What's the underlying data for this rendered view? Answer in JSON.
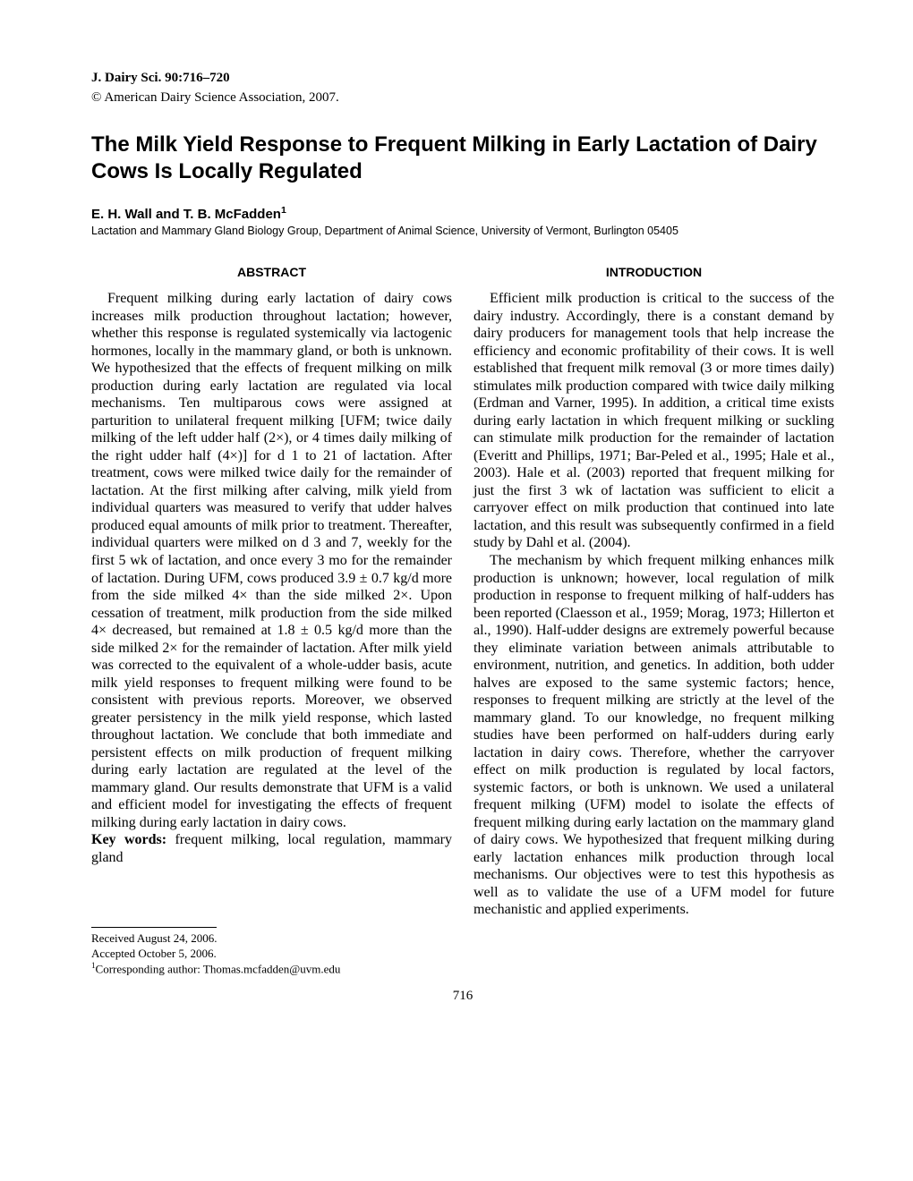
{
  "journal_ref": "J. Dairy Sci. 90:716–720",
  "copyright": "© American Dairy Science Association, 2007.",
  "title": "The Milk Yield Response to Frequent Milking in Early Lactation of Dairy Cows Is Locally Regulated",
  "authors": "E. H. Wall and T. B. McFadden",
  "author_sup": "1",
  "affiliation": "Lactation and Mammary Gland Biology Group, Department of Animal Science, University of Vermont, Burlington 05405",
  "abstract_heading": "ABSTRACT",
  "intro_heading": "INTRODUCTION",
  "abstract_text": "Frequent milking during early lactation of dairy cows increases milk production throughout lactation; however, whether this response is regulated systemically via lactogenic hormones, locally in the mammary gland, or both is unknown. We hypothesized that the effects of frequent milking on milk production during early lactation are regulated via local mechanisms. Ten multiparous cows were assigned at parturition to unilateral frequent milking [UFM; twice daily milking of the left udder half (2×), or 4 times daily milking of the right udder half (4×)] for d 1 to 21 of lactation. After treatment, cows were milked twice daily for the remainder of lactation. At the first milking after calving, milk yield from individual quarters was measured to verify that udder halves produced equal amounts of milk prior to treatment. Thereafter, individual quarters were milked on d 3 and 7, weekly for the first 5 wk of lactation, and once every 3 mo for the remainder of lactation. During UFM, cows produced 3.9 ± 0.7 kg/d more from the side milked 4× than the side milked 2×. Upon cessation of treatment, milk production from the side milked 4× decreased, but remained at 1.8 ± 0.5 kg/d more than the side milked 2× for the remainder of lactation. After milk yield was corrected to the equivalent of a whole-udder basis, acute milk yield responses to frequent milking were found to be consistent with previous reports. Moreover, we observed greater persistency in the milk yield response, which lasted throughout lactation. We conclude that both immediate and persistent effects on milk production of frequent milking during early lactation are regulated at the level of the mammary gland. Our results demonstrate that UFM is a valid and efficient model for investigating the effects of frequent milking during early lactation in dairy cows.",
  "key_words_label": "Key words:",
  "key_words_text": " frequent milking, local regulation, mammary gland",
  "intro_p1": "Efficient milk production is critical to the success of the dairy industry. Accordingly, there is a constant demand by dairy producers for management tools that help increase the efficiency and economic profitability of their cows. It is well established that frequent milk removal (3 or more times daily) stimulates milk production compared with twice daily milking (Erdman and Varner, 1995). In addition, a critical time exists during early lactation in which frequent milking or suckling can stimulate milk production for the remainder of lactation (Everitt and Phillips, 1971; Bar-Peled et al., 1995; Hale et al., 2003). Hale et al. (2003) reported that frequent milking for just the first 3 wk of lactation was sufficient to elicit a carryover effect on milk production that continued into late lactation, and this result was subsequently confirmed in a field study by Dahl et al. (2004).",
  "intro_p2": "The mechanism by which frequent milking enhances milk production is unknown; however, local regulation of milk production in response to frequent milking of half-udders has been reported (Claesson et al., 1959; Morag, 1973; Hillerton et al., 1990). Half-udder designs are extremely powerful because they eliminate variation between animals attributable to environment, nutrition, and genetics. In addition, both udder halves are exposed to the same systemic factors; hence, responses to frequent milking are strictly at the level of the mammary gland. To our knowledge, no frequent milking studies have been performed on half-udders during early lactation in dairy cows. Therefore, whether the carryover effect on milk production is regulated by local factors, systemic factors, or both is unknown. We used a unilateral frequent milking (UFM) model to isolate the effects of frequent milking during early lactation on the mammary gland of dairy cows. We hypothesized that frequent milking during early lactation enhances milk production through local mechanisms. Our objectives were to test this hypothesis as well as to validate the use of a UFM model for future mechanistic and applied experiments.",
  "footnote_received": "Received August 24, 2006.",
  "footnote_accepted": "Accepted October 5, 2006.",
  "footnote_corr_label": "Corresponding author: ",
  "footnote_corr_email": "Thomas.mcfadden@uvm.edu",
  "footnote_sup": "1",
  "page_number": "716"
}
